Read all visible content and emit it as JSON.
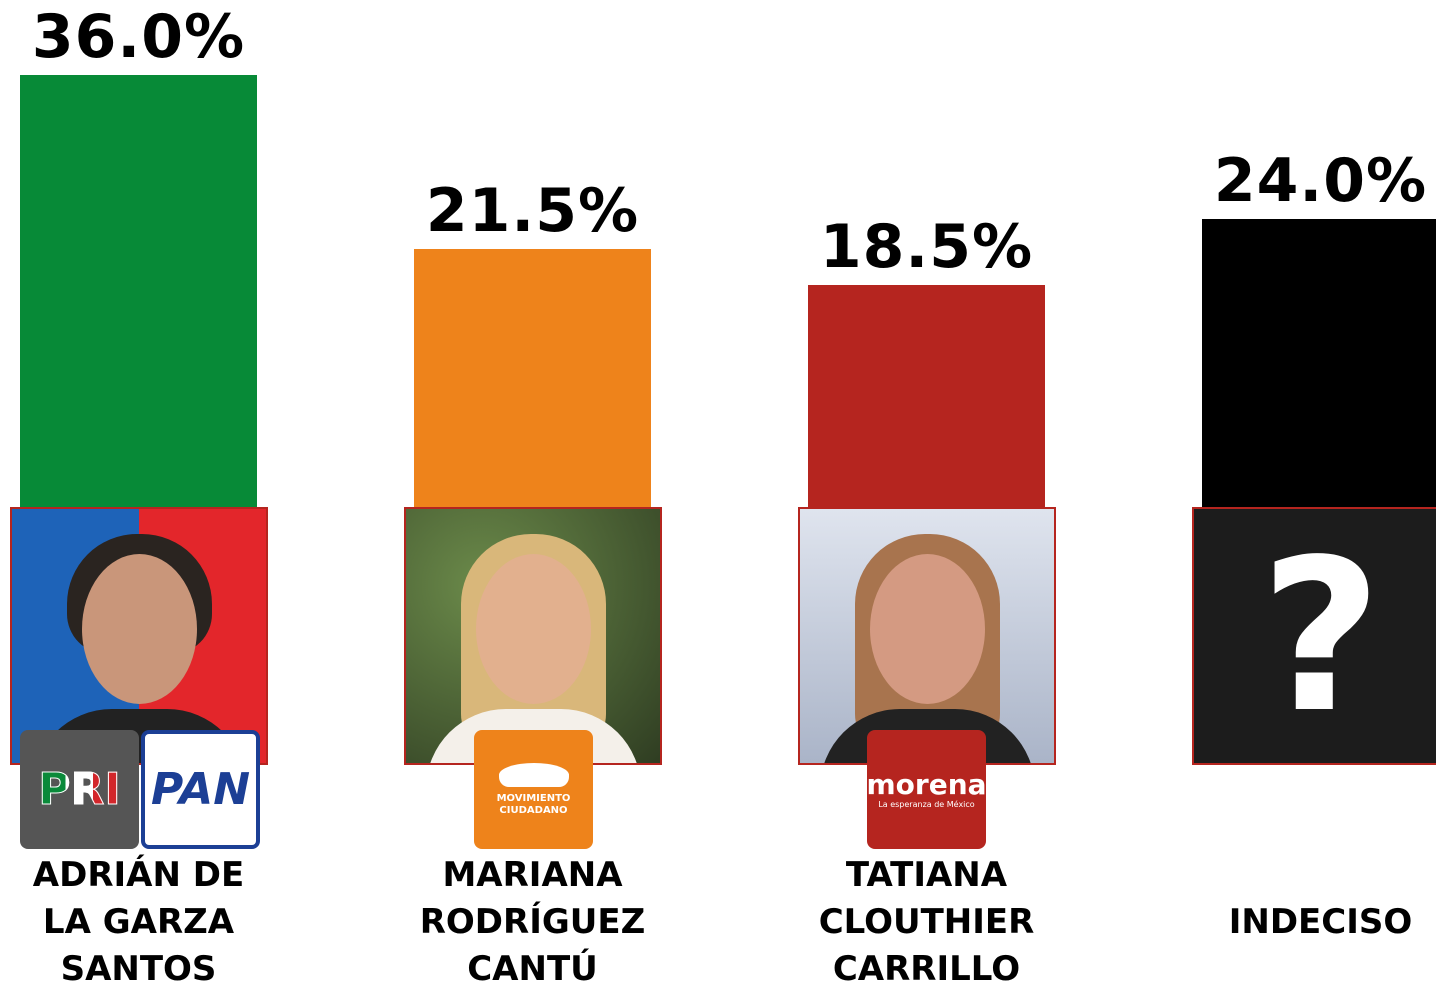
{
  "chart_data": {
    "type": "bar",
    "categories": [
      [
        "ADRIÁN DE",
        "LA GARZA",
        "SANTOS"
      ],
      [
        "MARIANA",
        "RODRÍGUEZ",
        "CANTÚ"
      ],
      [
        "TATIANA",
        "CLOUTHIER",
        "CARRILLO"
      ],
      [
        "INDECISO"
      ]
    ],
    "values": [
      36.0,
      21.5,
      18.5,
      24.0
    ],
    "value_labels": [
      "36.0%",
      "21.5%",
      "18.5%",
      "24.0%"
    ],
    "colors": [
      "#078a37",
      "#ee831b",
      "#b5251f",
      "#000000"
    ]
  },
  "logos": [
    [
      "PRI",
      "PAN"
    ],
    [
      "MOVIMIENTO CIUDADANO"
    ],
    [
      "morena",
      "La esperanza de México"
    ]
  ],
  "undecided_symbol": "?"
}
